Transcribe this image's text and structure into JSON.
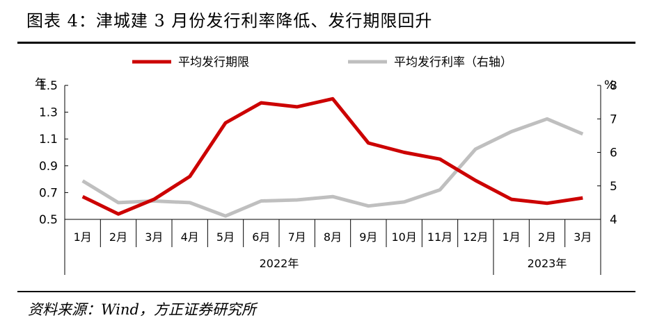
{
  "title": "图表 4：津城建 3 月份发行利率降低、发行期限回升",
  "source": "资料来源：Wind，方正证券研究所",
  "chart_data": {
    "type": "line",
    "categories": [
      "1月",
      "2月",
      "3月",
      "4月",
      "5月",
      "6月",
      "7月",
      "8月",
      "9月",
      "10月",
      "11月",
      "12月",
      "1月",
      "2月",
      "3月"
    ],
    "year_groups": [
      {
        "label": "2022年",
        "start": 0,
        "end": 11
      },
      {
        "label": "2023年",
        "start": 12,
        "end": 14
      }
    ],
    "y_left": {
      "unit": "年",
      "ylim": [
        0.5,
        1.5
      ],
      "ticks": [
        "0.5",
        "0.7",
        "0.9",
        "1.1",
        "1.3",
        "1.5"
      ]
    },
    "y_right": {
      "unit": "%",
      "ylim": [
        4,
        8
      ],
      "ticks": [
        "4",
        "5",
        "6",
        "7",
        "8"
      ]
    },
    "series": [
      {
        "name": "平均发行期限",
        "axis": "left",
        "color": "#cc0000",
        "values": [
          0.67,
          0.54,
          0.65,
          0.82,
          1.22,
          1.37,
          1.34,
          1.4,
          1.07,
          1.0,
          0.95,
          0.79,
          0.65,
          0.62,
          0.66
        ]
      },
      {
        "name": "平均发行利率（右轴）",
        "axis": "right",
        "color": "#bfbfbf",
        "values": [
          5.15,
          4.5,
          4.55,
          4.5,
          4.1,
          4.55,
          4.58,
          4.68,
          4.4,
          4.52,
          4.88,
          6.1,
          6.62,
          7.0,
          6.55
        ]
      }
    ],
    "grid": false,
    "legend": "top"
  }
}
